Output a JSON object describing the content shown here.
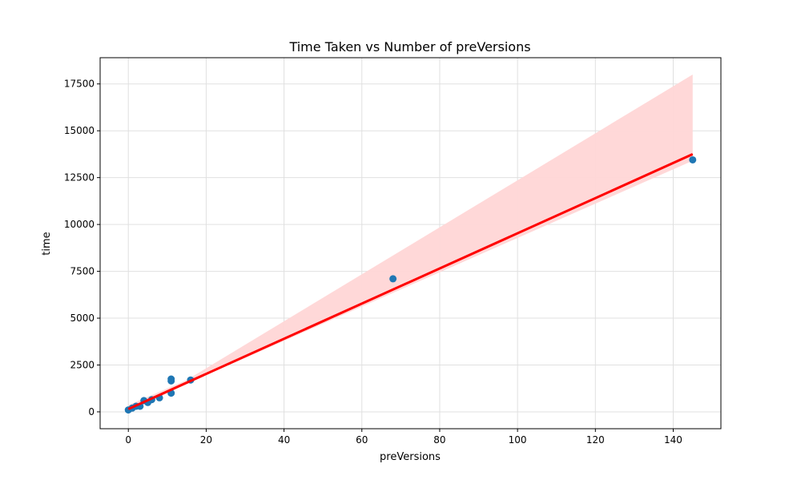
{
  "chart_data": {
    "type": "scatter",
    "title": "Time Taken vs Number of preVersions",
    "xlabel": "preVersions",
    "ylabel": "time",
    "xlim": [
      -7.25,
      152.25
    ],
    "ylim": [
      -900,
      18900
    ],
    "xticks": [
      0,
      20,
      40,
      60,
      80,
      100,
      120,
      140
    ],
    "yticks": [
      0,
      2500,
      5000,
      7500,
      10000,
      12500,
      15000,
      17500
    ],
    "grid": true,
    "points": {
      "x": [
        0,
        1,
        2,
        3,
        4,
        5,
        6,
        8,
        11,
        11,
        11,
        16,
        68,
        145
      ],
      "y": [
        100,
        200,
        300,
        300,
        600,
        500,
        650,
        750,
        1000,
        1650,
        1750,
        1700,
        7100,
        13450
      ]
    },
    "regression": {
      "x": [
        0,
        145
      ],
      "y": [
        150,
        13750
      ]
    },
    "ci_band": {
      "x": [
        0,
        15,
        145
      ],
      "upper": [
        350,
        1700,
        18000
      ],
      "lower": [
        0,
        1500,
        13400
      ]
    },
    "colors": {
      "points": "#1f77b4",
      "line": "#ff0000",
      "band": "#ffd6d6"
    }
  }
}
